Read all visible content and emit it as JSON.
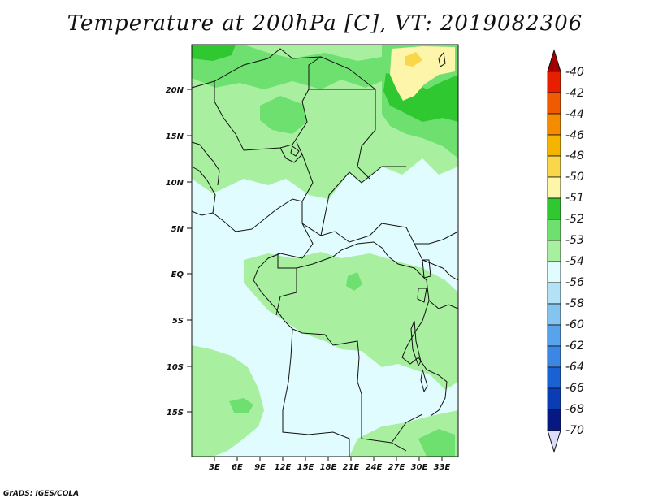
{
  "title": "Temperature at 200hPa [C], VT: 2019082306",
  "footer": "GrADS: IGES/COLA",
  "lat_labels": [
    "20N",
    "15N",
    "10N",
    "5N",
    "EQ",
    "5S",
    "10S",
    "15S"
  ],
  "lon_labels": [
    "3E",
    "6E",
    "9E",
    "12E",
    "15E",
    "18E",
    "21E",
    "24E",
    "27E",
    "30E",
    "33E"
  ],
  "colorbar": {
    "labels": [
      "-40",
      "-42",
      "-44",
      "-46",
      "-48",
      "-50",
      "-51",
      "-52",
      "-53",
      "-54",
      "-56",
      "-58",
      "-60",
      "-62",
      "-64",
      "-66",
      "-68",
      "-70"
    ],
    "colors": [
      "#a00000",
      "#e81e00",
      "#f05a00",
      "#f58c00",
      "#f5b400",
      "#fad64b",
      "#fcf5aa",
      "#2fc830",
      "#6ee070",
      "#a8f0a0",
      "#e1fcff",
      "#b3e1f6",
      "#86c4f0",
      "#58a4ec",
      "#3c87e4",
      "#1a62d4",
      "#0a3cb4",
      "#061882",
      "#dcdcf8"
    ]
  },
  "colors": {
    "base": "#e1fcff",
    "light_green": "#a8f0a0",
    "mid_green": "#6ee070",
    "dark_green": "#2fc830",
    "yellow": "#fcf5aa",
    "orange_yellow": "#fad64b"
  }
}
